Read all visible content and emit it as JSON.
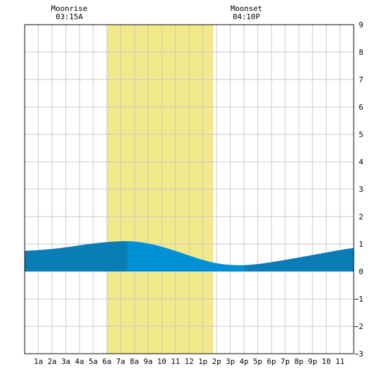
{
  "chart_data": {
    "type": "area",
    "title": "",
    "xlabel": "",
    "ylabel": "",
    "x_unit": "hour of day",
    "xlim": [
      0,
      24
    ],
    "ylim": [
      -3,
      9
    ],
    "x_tick_labels": [
      {
        "hour": 1,
        "label": "1a"
      },
      {
        "hour": 2,
        "label": "2a"
      },
      {
        "hour": 3,
        "label": "3a"
      },
      {
        "hour": 4,
        "label": "4a"
      },
      {
        "hour": 5,
        "label": "5a"
      },
      {
        "hour": 6,
        "label": "6a"
      },
      {
        "hour": 7,
        "label": "7a"
      },
      {
        "hour": 8,
        "label": "8a"
      },
      {
        "hour": 9,
        "label": "9a"
      },
      {
        "hour": 10,
        "label": "10"
      },
      {
        "hour": 11,
        "label": "11"
      },
      {
        "hour": 12,
        "label": "12"
      },
      {
        "hour": 13,
        "label": "1p"
      },
      {
        "hour": 14,
        "label": "2p"
      },
      {
        "hour": 15,
        "label": "3p"
      },
      {
        "hour": 16,
        "label": "4p"
      },
      {
        "hour": 17,
        "label": "5p"
      },
      {
        "hour": 18,
        "label": "6p"
      },
      {
        "hour": 19,
        "label": "7p"
      },
      {
        "hour": 20,
        "label": "8p"
      },
      {
        "hour": 21,
        "label": "9p"
      },
      {
        "hour": 22,
        "label": "10"
      },
      {
        "hour": 23,
        "label": "11"
      }
    ],
    "y_ticks": [
      9,
      8,
      7,
      6,
      5,
      4,
      3,
      2,
      1,
      0,
      -1,
      -2,
      -3
    ],
    "grid": true,
    "daylight": {
      "start": 6.0,
      "end": 13.75,
      "color": "#f2e98a"
    },
    "moonrise": {
      "label": "Moonrise",
      "time": "03:15A",
      "hour": 3.25
    },
    "moonset": {
      "label": "Moonset",
      "time": "04:10P",
      "hour": 16.17
    },
    "tide": {
      "high": {
        "hour": 7.5,
        "level": 1.1
      },
      "low": {
        "hour": 16.0,
        "level": 0.23
      },
      "points": [
        {
          "x": 0,
          "y": 0.75
        },
        {
          "x": 1,
          "y": 0.78
        },
        {
          "x": 2,
          "y": 0.82
        },
        {
          "x": 3,
          "y": 0.88
        },
        {
          "x": 4,
          "y": 0.95
        },
        {
          "x": 5,
          "y": 1.02
        },
        {
          "x": 6,
          "y": 1.07
        },
        {
          "x": 7,
          "y": 1.1
        },
        {
          "x": 7.5,
          "y": 1.1
        },
        {
          "x": 8,
          "y": 1.09
        },
        {
          "x": 9,
          "y": 1.02
        },
        {
          "x": 10,
          "y": 0.9
        },
        {
          "x": 11,
          "y": 0.75
        },
        {
          "x": 12,
          "y": 0.58
        },
        {
          "x": 13,
          "y": 0.42
        },
        {
          "x": 14,
          "y": 0.3
        },
        {
          "x": 15,
          "y": 0.24
        },
        {
          "x": 16,
          "y": 0.23
        },
        {
          "x": 17,
          "y": 0.27
        },
        {
          "x": 18,
          "y": 0.34
        },
        {
          "x": 19,
          "y": 0.42
        },
        {
          "x": 20,
          "y": 0.51
        },
        {
          "x": 21,
          "y": 0.6
        },
        {
          "x": 22,
          "y": 0.69
        },
        {
          "x": 23,
          "y": 0.78
        },
        {
          "x": 24,
          "y": 0.85
        }
      ]
    },
    "colors": {
      "tide_night": "#0a7cb6",
      "tide_day": "#0090d6",
      "grid": "#c8c8c8",
      "frame": "#000000"
    }
  }
}
